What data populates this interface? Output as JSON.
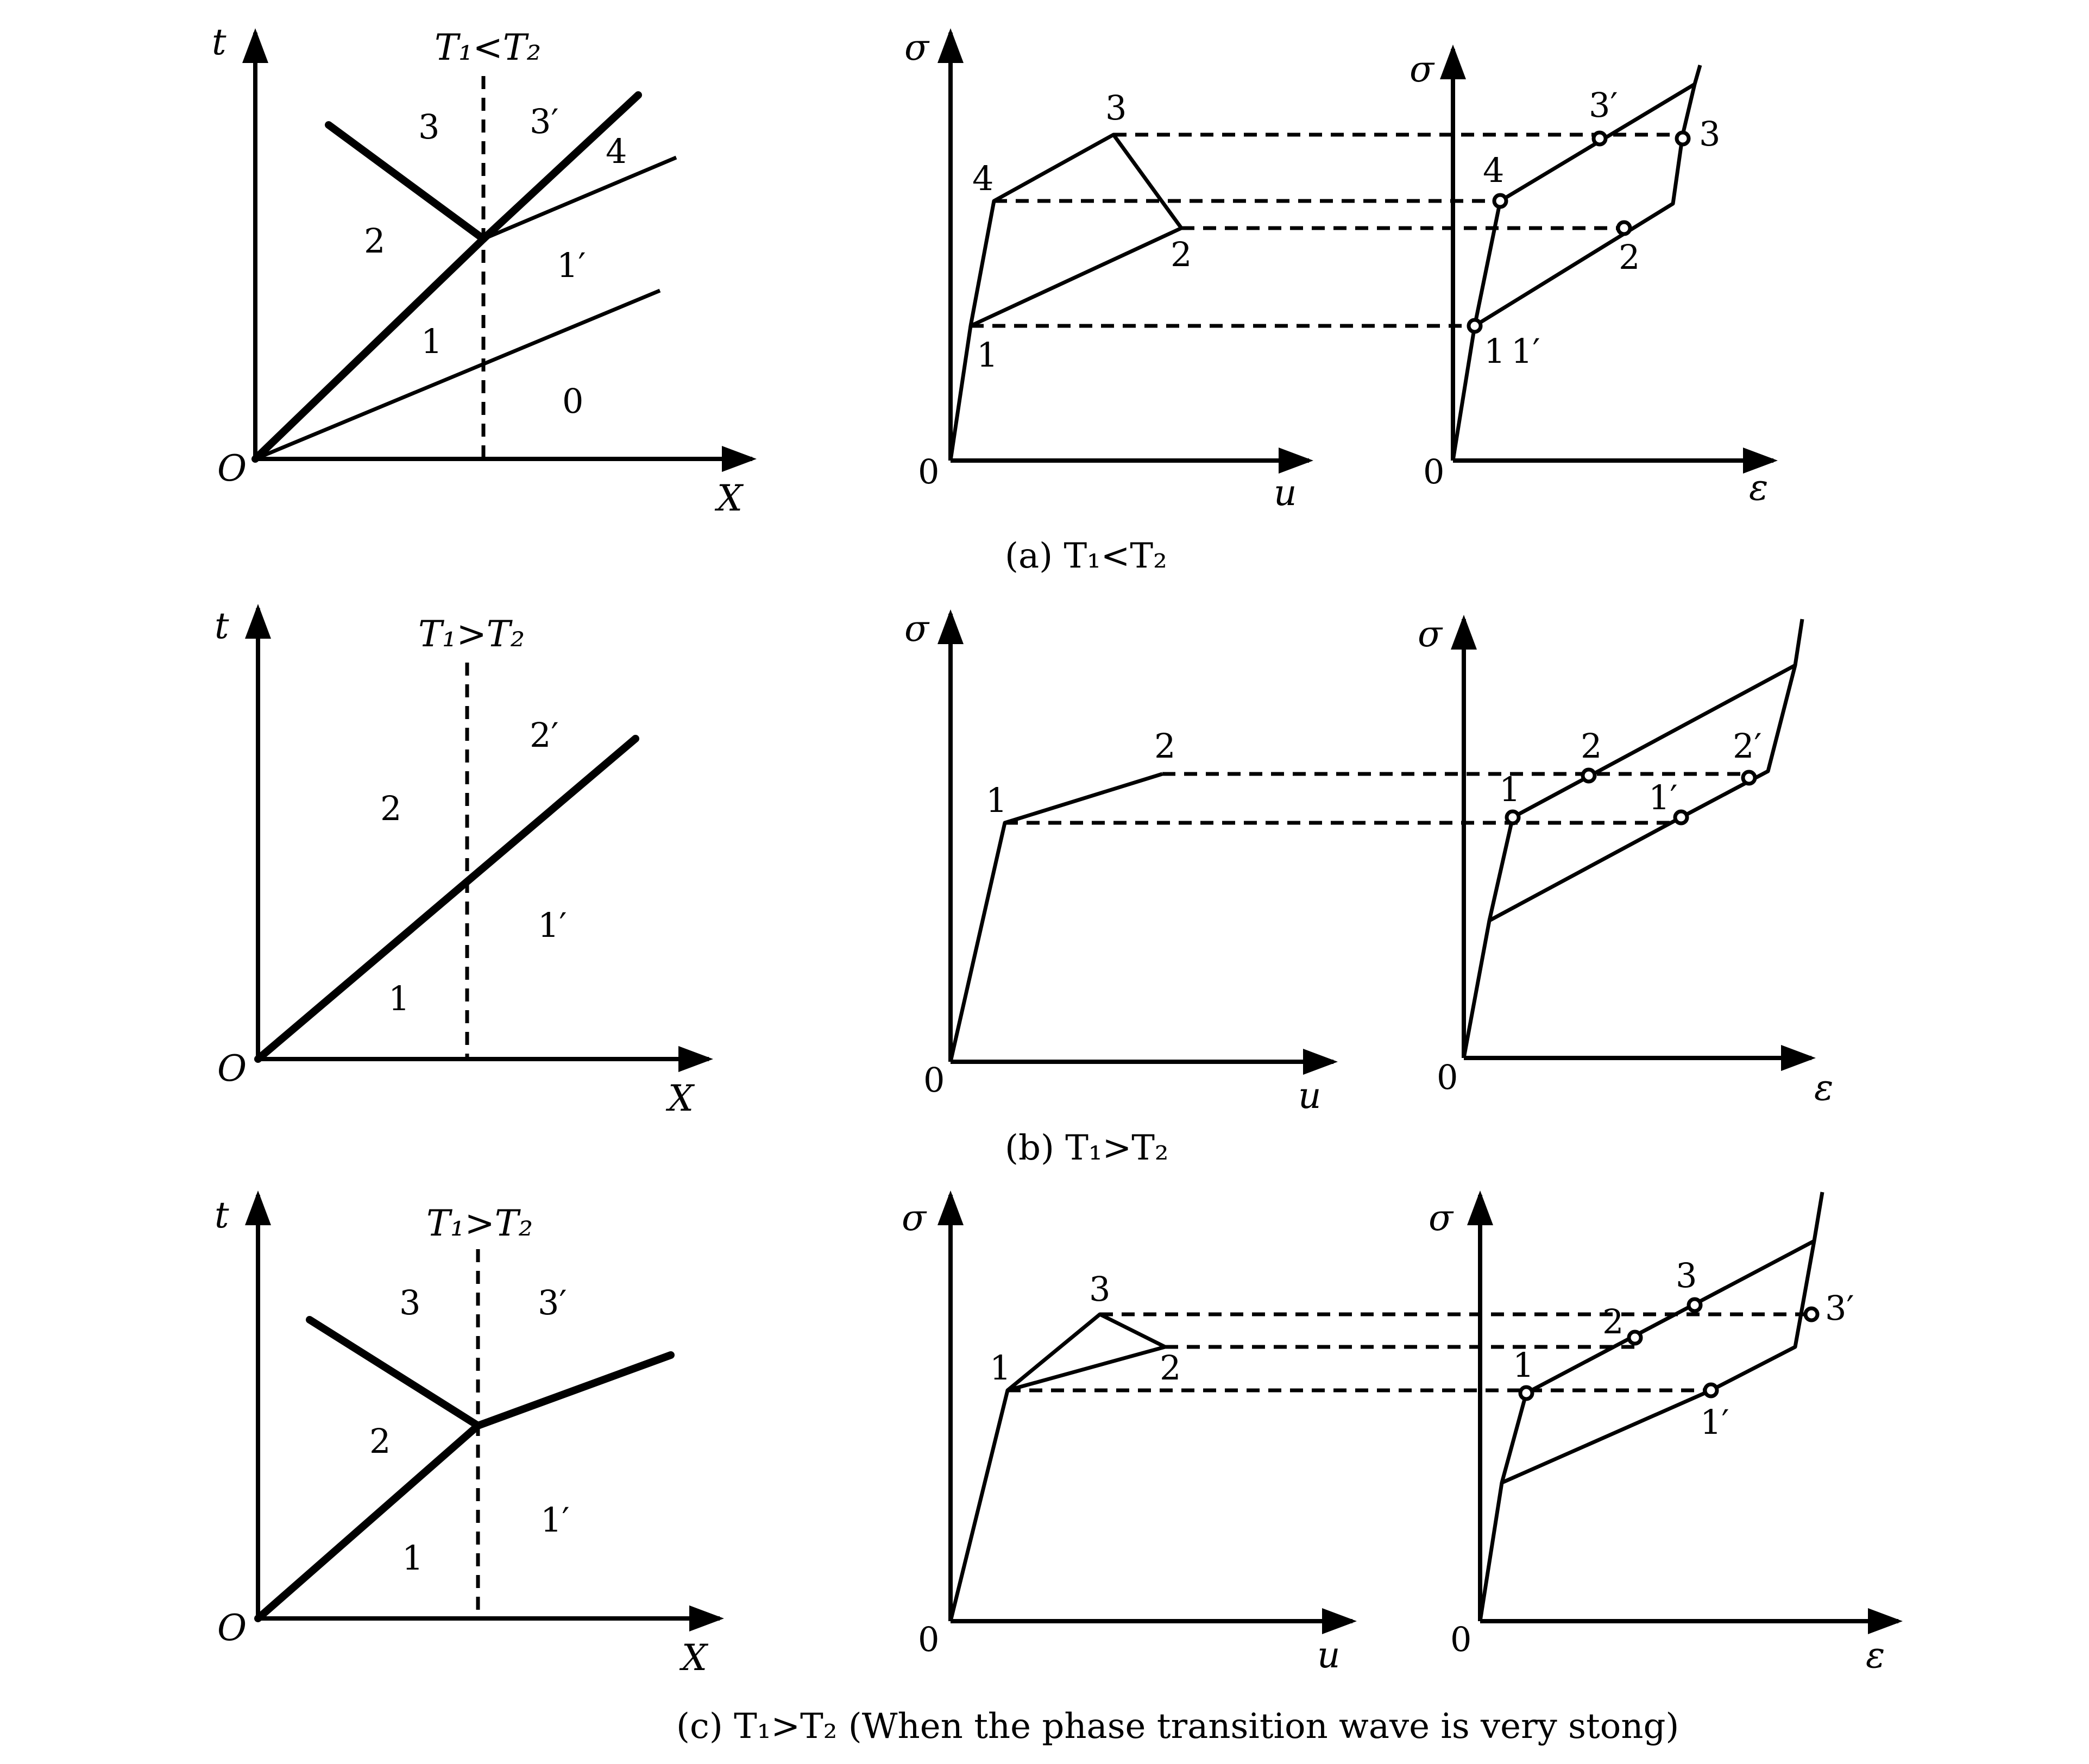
{
  "panels": [
    {
      "id": "a",
      "caption": "(a) T₁<T₂",
      "xt": {
        "t_label": "t",
        "x_label": "X",
        "origin_label": "O",
        "condition": "T₁<T₂",
        "regions": [
          "3",
          "3′",
          "4",
          "2",
          "1′",
          "1",
          "0"
        ]
      },
      "su": {
        "y_label": "σ",
        "x_label": "u",
        "origin_label": "0",
        "points": [
          "1",
          "2",
          "3",
          "4"
        ]
      },
      "se": {
        "y_label": "σ",
        "x_label": "ε",
        "origin_label": "0",
        "points": [
          "1",
          "1′",
          "2",
          "3",
          "3′",
          "4"
        ]
      }
    },
    {
      "id": "b",
      "caption": "(b)  T₁>T₂",
      "xt": {
        "t_label": "t",
        "x_label": "X",
        "origin_label": "O",
        "condition": "T₁>T₂",
        "regions": [
          "2",
          "2′",
          "1′",
          "1"
        ]
      },
      "su": {
        "y_label": "σ",
        "x_label": "u",
        "origin_label": "0",
        "points": [
          "1",
          "2"
        ]
      },
      "se": {
        "y_label": "σ",
        "x_label": "ε",
        "origin_label": "0",
        "points": [
          "1",
          "2",
          "1′",
          "2′"
        ]
      }
    },
    {
      "id": "c",
      "caption": "(c)  T₁>T₂ (When the phase transition wave is very stong)",
      "xt": {
        "t_label": "t",
        "x_label": "X",
        "origin_label": "O",
        "condition": "T₁>T₂",
        "regions": [
          "3",
          "3′",
          "2",
          "1′",
          "1"
        ]
      },
      "su": {
        "y_label": "σ",
        "x_label": "u",
        "origin_label": "0",
        "points": [
          "1",
          "2",
          "3"
        ]
      },
      "se": {
        "y_label": "σ",
        "x_label": "ε",
        "origin_label": "0",
        "points": [
          "1",
          "2",
          "3",
          "1′",
          "3′"
        ]
      }
    }
  ]
}
